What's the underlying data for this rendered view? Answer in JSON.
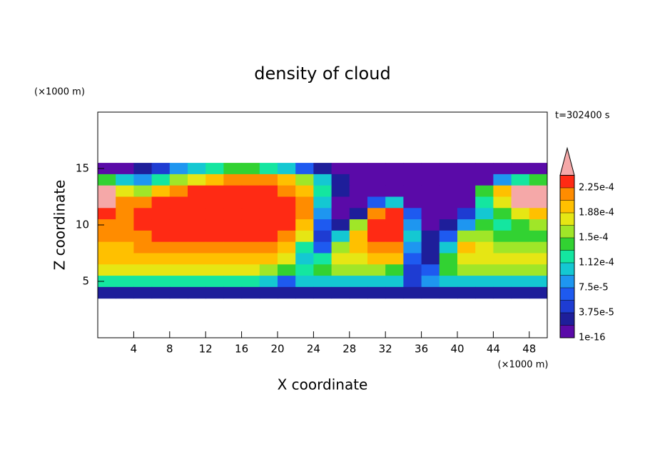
{
  "chart_data": {
    "type": "contour",
    "title": "density of cloud",
    "y_unit_label": "(×1000 m)",
    "x_unit_label": "(×1000 m)",
    "time_label": "t=302400 s",
    "xlabel": "X coordinate",
    "ylabel": "Z coordinate",
    "xlim": [
      0,
      50
    ],
    "ylim": [
      0,
      20
    ],
    "xticks": [
      4,
      8,
      12,
      16,
      20,
      24,
      28,
      32,
      36,
      40,
      44,
      48
    ],
    "yticks": [
      5,
      10,
      15
    ],
    "colorbar": {
      "levels": [
        {
          "value": 1e-16,
          "label": "1e-16"
        },
        1.875e-05,
        {
          "value": 3.75e-05,
          "label": "3.75e-5"
        },
        5.625e-05,
        {
          "value": 7.5e-05,
          "label": "7.5e-5"
        },
        9.375e-05,
        {
          "value": 0.0001125,
          "label": "1.12e-4"
        },
        0.00013125,
        {
          "value": 0.00015,
          "label": "1.5e-4"
        },
        0.00016875,
        {
          "value": 0.0001875,
          "label": "1.88e-4"
        },
        0.00020625,
        {
          "value": 0.000225,
          "label": "2.25e-4"
        },
        0.00024375
      ],
      "colors": [
        "#5a0aa8",
        "#1e1e9a",
        "#1e3cd2",
        "#1e5af0",
        "#1e96f0",
        "#14c8d2",
        "#14e6a0",
        "#32d232",
        "#a0e628",
        "#e6e614",
        "#ffc000",
        "#ff8c00",
        "#ff2a14"
      ],
      "over_color": "#f5a8a8"
    },
    "field": {
      "x": [
        1,
        3,
        5,
        7,
        9,
        11,
        13,
        15,
        17,
        19,
        21,
        23,
        25,
        27,
        29,
        31,
        33,
        35,
        37,
        39,
        41,
        43,
        45,
        47,
        49
      ],
      "z": [
        15,
        14,
        13,
        12,
        11,
        10,
        9,
        8,
        7,
        6,
        5,
        4
      ],
      "values": [
        [
          1e-05,
          1e-05,
          2e-05,
          4e-05,
          8e-05,
          0.0001,
          0.00012,
          0.00014,
          0.00014,
          0.00012,
          0.0001,
          6e-05,
          3e-05,
          1e-05,
          1e-05,
          1e-05,
          1e-05,
          1e-05,
          1e-05,
          1e-05,
          1e-05,
          1e-05,
          1e-05,
          1e-05,
          1e-05
        ],
        [
          0.00014,
          0.0001,
          8e-05,
          0.00012,
          0.00016,
          0.00018,
          0.0002,
          0.00022,
          0.00022,
          0.00022,
          0.0002,
          0.00016,
          0.0001,
          3e-05,
          1e-05,
          1e-05,
          1e-05,
          1e-05,
          1e-05,
          1e-05,
          1e-05,
          1e-05,
          8e-05,
          0.00012,
          0.00014
        ],
        [
          0.00026,
          0.00018,
          0.00016,
          0.0002,
          0.00022,
          0.00023,
          0.00023,
          0.00023,
          0.00023,
          0.00023,
          0.00022,
          0.0002,
          0.00012,
          2e-05,
          1e-05,
          1e-05,
          1e-05,
          1e-05,
          1e-05,
          1e-05,
          1e-05,
          0.00014,
          0.0002,
          0.00026,
          0.00026
        ],
        [
          0.00026,
          0.00022,
          0.00022,
          0.00023,
          0.00023,
          0.00023,
          0.00023,
          0.00023,
          0.00023,
          0.00023,
          0.00023,
          0.00021,
          0.0001,
          1e-05,
          1e-05,
          6e-05,
          0.0001,
          1e-05,
          1e-05,
          1e-05,
          1e-05,
          0.00012,
          0.00018,
          0.00026,
          0.00026
        ],
        [
          0.00024,
          0.00022,
          0.00023,
          0.00023,
          0.00023,
          0.00023,
          0.00023,
          0.00023,
          0.00023,
          0.00023,
          0.00023,
          0.00022,
          8e-05,
          1e-05,
          2e-05,
          0.00022,
          0.00023,
          6e-05,
          1e-05,
          1e-05,
          4e-05,
          0.0001,
          0.00014,
          0.00018,
          0.0002
        ],
        [
          0.00022,
          0.00021,
          0.00023,
          0.00023,
          0.00023,
          0.00023,
          0.00023,
          0.00023,
          0.00023,
          0.00023,
          0.00023,
          0.0002,
          6e-05,
          2e-05,
          0.00016,
          0.00023,
          0.00023,
          8e-05,
          1e-05,
          2e-05,
          8e-05,
          0.00014,
          0.00012,
          0.00014,
          0.00016
        ],
        [
          0.00021,
          0.00021,
          0.00022,
          0.00023,
          0.00023,
          0.00023,
          0.00023,
          0.00023,
          0.00023,
          0.00023,
          0.00022,
          0.00018,
          4e-05,
          0.0001,
          0.0002,
          0.00023,
          0.00023,
          0.0001,
          2e-05,
          6e-05,
          0.00016,
          0.00016,
          0.00014,
          0.00014,
          0.00014
        ],
        [
          0.0002,
          0.0002,
          0.00021,
          0.00022,
          0.00022,
          0.00022,
          0.00022,
          0.00022,
          0.00022,
          0.00022,
          0.0002,
          0.00012,
          6e-05,
          0.00016,
          0.0002,
          0.00022,
          0.00022,
          8e-05,
          2e-05,
          0.0001,
          0.0002,
          0.00018,
          0.00016,
          0.00016,
          0.00016
        ],
        [
          0.00019,
          0.00019,
          0.0002,
          0.0002,
          0.0002,
          0.0002,
          0.0002,
          0.0002,
          0.0002,
          0.00019,
          0.00018,
          0.0001,
          0.00012,
          0.00017,
          0.00018,
          0.0002,
          0.00019,
          6e-05,
          3e-05,
          0.00014,
          0.00018,
          0.00018,
          0.00018,
          0.00018,
          0.00018
        ],
        [
          0.00017,
          0.00017,
          0.00017,
          0.00017,
          0.00017,
          0.00017,
          0.00017,
          0.00017,
          0.00017,
          0.00016,
          0.00014,
          0.00012,
          0.00014,
          0.00016,
          0.00016,
          0.00016,
          0.00014,
          5e-05,
          6e-05,
          0.00014,
          0.00016,
          0.00016,
          0.00016,
          0.00016,
          0.00016
        ],
        [
          0.00012,
          0.00012,
          0.00012,
          0.00012,
          0.00012,
          0.00012,
          0.00012,
          0.00012,
          0.00012,
          0.0001,
          6e-05,
          0.0001,
          0.0001,
          0.00011,
          0.00011,
          0.00011,
          0.0001,
          4e-05,
          8e-05,
          0.0001,
          0.00011,
          0.00011,
          0.00011,
          0.00011,
          0.00011
        ],
        [
          3e-05,
          3e-05,
          3e-05,
          3e-05,
          3e-05,
          3e-05,
          3e-05,
          3e-05,
          3e-05,
          3e-05,
          2e-05,
          3e-05,
          3e-05,
          3e-05,
          3e-05,
          3e-05,
          3e-05,
          2e-05,
          2e-05,
          3e-05,
          3e-05,
          3e-05,
          3e-05,
          3e-05,
          3e-05
        ]
      ]
    }
  }
}
